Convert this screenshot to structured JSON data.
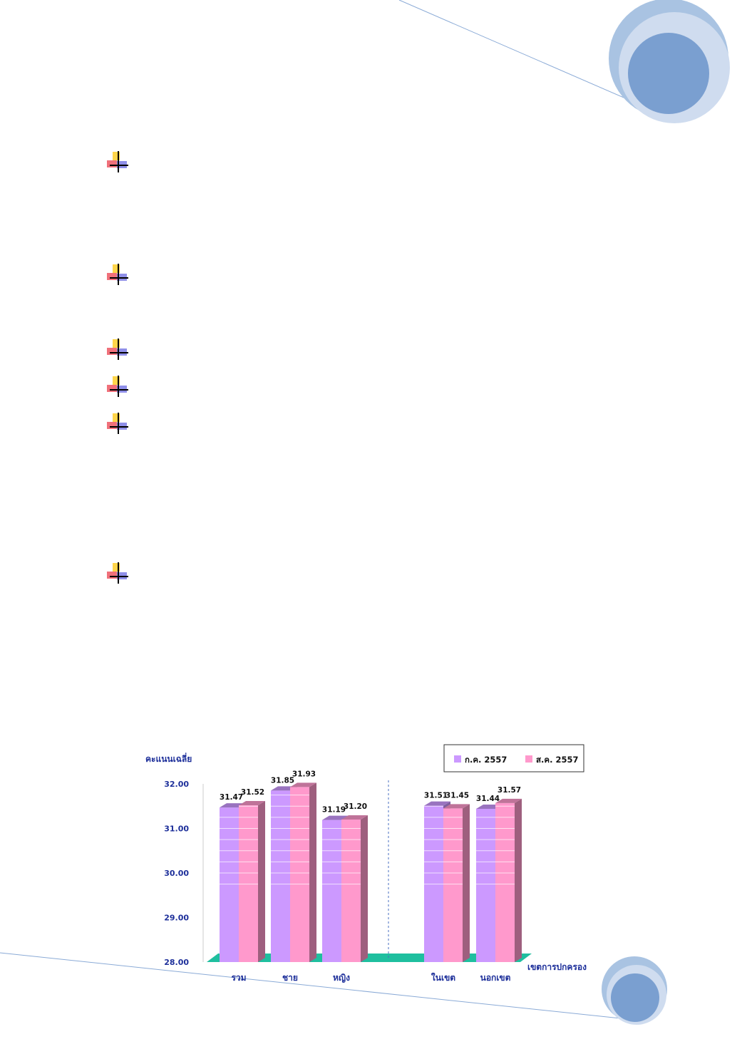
{
  "page": {
    "bullets": [
      {
        "icon": "plus-bullet-icon"
      },
      {
        "icon": "plus-bullet-icon"
      },
      {
        "icon": "plus-bullet-icon"
      },
      {
        "icon": "plus-bullet-icon"
      },
      {
        "icon": "plus-bullet-icon"
      },
      {
        "icon": "plus-bullet-icon"
      }
    ],
    "colors": {
      "circle_outer": "#a9c3e2",
      "circle_mid": "#cfdcef",
      "circle_inner": "#7a9fd0",
      "line": "#8aaad6"
    }
  },
  "chart_data": {
    "type": "bar",
    "title": "",
    "ylabel": "คะแนนเฉลี่ย",
    "xlabel": "เขตการปกครอง",
    "ylim": [
      28.0,
      32.0
    ],
    "yticks": [
      "28.00",
      "29.00",
      "30.00",
      "31.00",
      "32.00"
    ],
    "categories": [
      "รวม",
      "ชาย",
      "หญิง",
      "ในเขต",
      "นอกเขต"
    ],
    "series": [
      {
        "name": "ก.ค. 2557",
        "values": [
          31.47,
          31.85,
          31.19,
          31.51,
          31.44
        ],
        "labels": [
          "31.47",
          "31.85",
          "31.19",
          "31.51",
          "31.44"
        ],
        "color": "#cc99ff"
      },
      {
        "name": "ส.ค. 2557",
        "values": [
          31.52,
          31.93,
          31.2,
          31.45,
          31.57
        ],
        "labels": [
          "31.52",
          "31.93",
          "31.20",
          "31.45",
          "31.57"
        ],
        "color": "#ff99cc"
      }
    ],
    "legend": "top-right",
    "grid": false,
    "floor_color": "#1fbf9f"
  }
}
